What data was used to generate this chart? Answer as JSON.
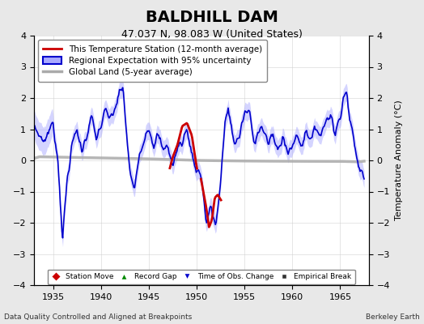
{
  "title": "BALDHILL DAM",
  "subtitle": "47.037 N, 98.083 W (United States)",
  "ylabel": "Temperature Anomaly (°C)",
  "xlim": [
    1933,
    1968
  ],
  "ylim": [
    -4,
    4
  ],
  "xticks": [
    1935,
    1940,
    1945,
    1950,
    1955,
    1960,
    1965
  ],
  "yticks": [
    -4,
    -3,
    -2,
    -1,
    0,
    1,
    2,
    3,
    4
  ],
  "background_color": "#e8e8e8",
  "plot_bg_color": "#ffffff",
  "blue_line_color": "#0000cc",
  "blue_fill_color": "#aaaaff",
  "red_line_color": "#cc0000",
  "gray_line_color": "#aaaaaa",
  "footer_left": "Data Quality Controlled and Aligned at Breakpoints",
  "footer_right": "Berkeley Earth",
  "legend_entries": [
    "This Temperature Station (12-month average)",
    "Regional Expectation with 95% uncertainty",
    "Global Land (5-year average)"
  ]
}
